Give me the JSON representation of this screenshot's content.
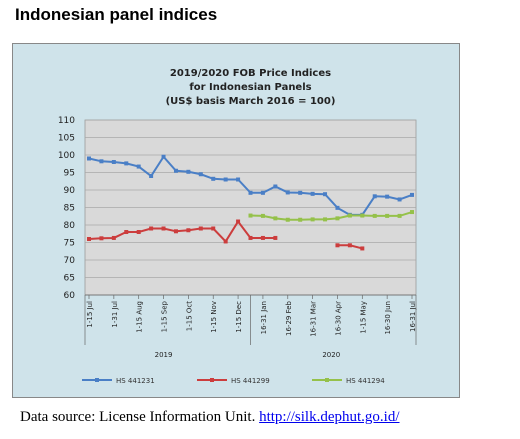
{
  "heading": "Indonesian panel indices",
  "source": {
    "text": "Data source: License Information Unit. ",
    "link_text": "http://silk.dephut.go.id/"
  },
  "colors": {
    "series1": "#4a7fc6",
    "series2": "#cc3d3d",
    "series3": "#95c14a",
    "plot_bg": "#d9d9d9",
    "frame_bg": "#cfe3ea"
  },
  "chart_data": {
    "type": "line",
    "title_lines": [
      "2019/2020 FOB Price Indices",
      "for Indonesian Panels",
      "(US$ basis March 2016 = 100)"
    ],
    "ylim": [
      60,
      110
    ],
    "yticks": [
      60,
      65,
      70,
      75,
      80,
      85,
      90,
      95,
      100,
      105,
      110
    ],
    "grid": true,
    "legend_position": "bottom",
    "x_tick_labels": [
      "1-15 Jul",
      "1-31 Jul",
      "1-15 Aug",
      "1-15 Sep",
      "1-15 Oct",
      "1-15 Nov",
      "1-15 Dec",
      "16-31 Jan",
      "16-29 Feb",
      "16-31 Mar",
      "16-30 Apr",
      "1-15 May",
      "16-30 Jun",
      "16-31 Jul"
    ],
    "x_tick_positions": [
      0,
      2,
      4,
      6,
      8,
      10,
      12,
      14,
      16,
      18,
      20,
      22,
      24,
      26
    ],
    "year_labels": [
      {
        "label": "2019",
        "center": 6
      },
      {
        "label": "2020",
        "center": 19.5
      }
    ],
    "year_divider": 13,
    "series": [
      {
        "name": "HS 441231",
        "color": "#4a7fc6",
        "points": [
          [
            0,
            99
          ],
          [
            1,
            98.2
          ],
          [
            2,
            98
          ],
          [
            3,
            97.6
          ],
          [
            4,
            96.7
          ],
          [
            5,
            94
          ],
          [
            6,
            99.5
          ],
          [
            7,
            95.5
          ],
          [
            8,
            95.2
          ],
          [
            9,
            94.5
          ],
          [
            10,
            93.2
          ],
          [
            11,
            93
          ],
          [
            12,
            93
          ],
          [
            13,
            89.2
          ],
          [
            14,
            89.2
          ],
          [
            15,
            91
          ],
          [
            16,
            89.3
          ],
          [
            17,
            89.2
          ],
          [
            18,
            88.9
          ],
          [
            19,
            88.8
          ],
          [
            20,
            84.9
          ],
          [
            21,
            82.9
          ],
          [
            22,
            82.9
          ],
          [
            23,
            88.2
          ],
          [
            24,
            88.1
          ],
          [
            25,
            87.3
          ],
          [
            26,
            88.6
          ]
        ]
      },
      {
        "name": "HS 441299",
        "color": "#cc3d3d",
        "points": [
          [
            0,
            76
          ],
          [
            1,
            76.2
          ],
          [
            2,
            76.3
          ],
          [
            3,
            78
          ],
          [
            4,
            78
          ],
          [
            5,
            79
          ],
          [
            6,
            79
          ],
          [
            7,
            78.2
          ],
          [
            8,
            78.5
          ],
          [
            9,
            79
          ],
          [
            10,
            79
          ],
          [
            11,
            75.3
          ],
          [
            12,
            81
          ],
          [
            13,
            76.3
          ],
          [
            14,
            76.3
          ],
          [
            15,
            76.3
          ],
          null,
          null,
          null,
          null,
          [
            20,
            74.2
          ],
          [
            21,
            74.2
          ],
          [
            22,
            73.3
          ]
        ]
      },
      {
        "name": "HS 441294",
        "color": "#95c14a",
        "points": [
          [
            13,
            82.7
          ],
          [
            14,
            82.6
          ],
          [
            15,
            81.9
          ],
          [
            16,
            81.5
          ],
          [
            17,
            81.5
          ],
          [
            18,
            81.6
          ],
          [
            19,
            81.6
          ],
          [
            20,
            81.9
          ],
          [
            21,
            82.7
          ],
          [
            22,
            82.7
          ],
          [
            23,
            82.6
          ],
          [
            24,
            82.6
          ],
          [
            25,
            82.6
          ],
          [
            26,
            83.7
          ]
        ]
      }
    ]
  }
}
